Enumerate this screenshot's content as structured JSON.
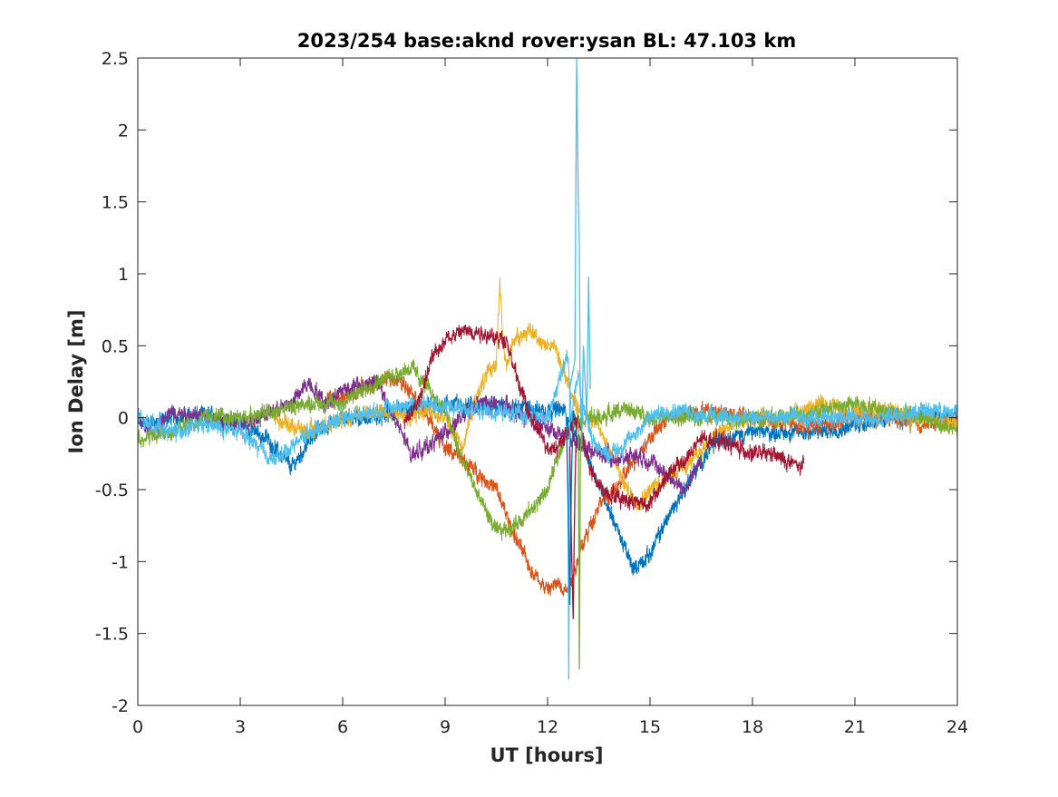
{
  "chart_data": {
    "type": "line",
    "title": "2023/254 base:aknd rover:ysan BL: 47.103 km",
    "xlabel": "UT [hours]",
    "ylabel": "Ion Delay [m]",
    "xlim": [
      0,
      24
    ],
    "ylim": [
      -2,
      2.5
    ],
    "x_ticks": [
      0,
      3,
      6,
      9,
      12,
      15,
      18,
      21,
      24
    ],
    "x_tick_labels": [
      "0",
      "3",
      "6",
      "9",
      "12",
      "15",
      "18",
      "21",
      "24"
    ],
    "y_ticks": [
      -2,
      -1.5,
      -1,
      -0.5,
      0,
      0.5,
      1,
      1.5,
      2,
      2.5
    ],
    "y_tick_labels": [
      "-2",
      "-1.5",
      "-1",
      "-0.5",
      "0",
      "0.5",
      "1",
      "1.5",
      "2",
      "2.5"
    ],
    "grid": false,
    "legend": "none",
    "series": [
      {
        "color": "#0072BD",
        "noise": 0.045,
        "x": [
          0.0,
          1.0,
          2.0,
          3.0,
          3.8,
          4.5,
          5.2,
          6.0,
          7.0,
          8.0,
          9.0,
          12.5,
          13.0,
          13.5,
          14.0,
          14.5,
          15.0,
          15.5,
          16.0,
          16.5,
          17.0,
          18.0,
          19.0,
          20.0,
          21.0,
          22.0,
          23.0,
          24.0
        ],
        "y": [
          -0.05,
          0.0,
          0.02,
          -0.05,
          -0.15,
          -0.35,
          -0.1,
          0.0,
          0.0,
          0.05,
          0.1,
          0.05,
          -0.2,
          -0.45,
          -0.75,
          -1.05,
          -0.95,
          -0.7,
          -0.5,
          -0.3,
          -0.15,
          -0.1,
          -0.1,
          -0.1,
          -0.05,
          0.0,
          0.0,
          0.0
        ]
      },
      {
        "color": "#D95319",
        "noise": 0.045,
        "x": [
          5.5,
          6.5,
          7.5,
          8.0,
          8.5,
          9.0,
          9.8,
          10.5,
          11.0,
          11.5,
          12.0,
          12.3,
          12.6,
          13.0,
          13.5,
          14.0,
          14.8,
          15.5,
          16.5,
          17.0,
          18.0,
          19.0,
          20.0,
          21.0,
          22.0,
          23.0,
          24.0
        ],
        "y": [
          0.1,
          0.2,
          0.28,
          0.2,
          0.0,
          -0.2,
          -0.35,
          -0.5,
          -0.8,
          -1.05,
          -1.2,
          -1.15,
          -1.2,
          -0.9,
          -0.6,
          -0.5,
          -0.2,
          0.0,
          0.05,
          0.05,
          0.0,
          -0.05,
          -0.05,
          0.0,
          0.0,
          -0.05,
          0.0
        ]
      },
      {
        "color": "#EDB120",
        "noise": 0.045,
        "x": [
          4.0,
          5.0,
          6.0,
          7.0,
          8.0,
          8.5,
          9.0,
          9.5,
          10.0,
          10.5,
          10.6,
          10.7,
          10.8,
          11.0,
          11.5,
          12.0,
          12.2,
          12.8,
          13.3,
          13.8,
          14.2,
          14.6,
          15.0,
          15.5,
          16.0,
          17.0,
          18.0,
          19.0,
          20.0,
          21.0,
          22.0,
          23.0,
          24.0
        ],
        "y": [
          0.0,
          -0.1,
          0.0,
          0.05,
          0.0,
          0.05,
          0.0,
          -0.2,
          0.2,
          0.4,
          0.95,
          0.5,
          0.35,
          0.55,
          0.6,
          0.5,
          0.5,
          0.1,
          0.0,
          -0.2,
          -0.45,
          -0.6,
          -0.5,
          -0.4,
          -0.35,
          -0.1,
          0.0,
          0.0,
          0.1,
          0.05,
          0.05,
          0.0,
          -0.05
        ]
      },
      {
        "color": "#7E2F8E",
        "noise": 0.045,
        "x": [
          0.0,
          0.5,
          1.0,
          2.0,
          3.0,
          4.0,
          4.5,
          5.0,
          5.5,
          6.0,
          7.0,
          7.5,
          8.0,
          8.5,
          9.0,
          9.5,
          10.0,
          10.5,
          14.0,
          14.5,
          15.0,
          16.0,
          16.5
        ],
        "y": [
          0.0,
          -0.1,
          0.05,
          0.0,
          -0.05,
          0.05,
          0.1,
          0.25,
          0.1,
          0.2,
          0.25,
          0.0,
          -0.25,
          -0.2,
          -0.1,
          0.0,
          0.1,
          0.1,
          -0.3,
          -0.25,
          -0.3,
          -0.5,
          -0.3
        ]
      },
      {
        "color": "#77AC30",
        "noise": 0.045,
        "x": [
          0.0,
          1.0,
          2.0,
          3.0,
          4.0,
          5.0,
          6.0,
          7.0,
          8.0,
          8.5,
          9.0,
          9.5,
          10.0,
          10.5,
          11.0,
          11.5,
          12.0,
          12.4,
          12.8,
          13.2,
          13.6,
          14.0,
          14.5,
          15.0,
          17.0,
          19.0,
          20.0,
          21.0,
          22.0,
          23.0,
          24.0
        ],
        "y": [
          -0.15,
          -0.1,
          0.0,
          0.0,
          0.05,
          0.1,
          0.1,
          0.25,
          0.35,
          0.2,
          0.05,
          -0.3,
          -0.55,
          -0.8,
          -0.75,
          -0.65,
          -0.5,
          -0.2,
          0.0,
          0.0,
          0.0,
          0.05,
          0.05,
          0.0,
          0.0,
          0.0,
          0.05,
          0.1,
          0.05,
          0.0,
          -0.1
        ]
      },
      {
        "color": "#4DBEEE",
        "noise": 0.045,
        "x": [
          0.0,
          1.0,
          2.0,
          3.0,
          3.5,
          4.0,
          4.5,
          5.0,
          6.0,
          7.0,
          8.0,
          12.0,
          12.4,
          12.6,
          12.7,
          12.8,
          12.9,
          13.0,
          13.4,
          13.8,
          14.2,
          14.6,
          15.0,
          15.5,
          16.0,
          17.0,
          18.0,
          19.0,
          20.0,
          21.0,
          22.0,
          23.0,
          24.0
        ],
        "y": [
          0.0,
          -0.1,
          -0.05,
          -0.1,
          -0.2,
          -0.3,
          -0.2,
          -0.1,
          0.0,
          0.05,
          0.1,
          0.0,
          0.3,
          0.45,
          0.0,
          0.2,
          0.3,
          0.1,
          -0.2,
          -0.25,
          -0.2,
          -0.1,
          0.0,
          0.05,
          0.05,
          0.0,
          0.0,
          0.0,
          0.0,
          0.0,
          0.0,
          0.05,
          0.05
        ]
      },
      {
        "color": "#A2142F",
        "noise": 0.045,
        "x": [
          7.8,
          8.2,
          8.6,
          9.0,
          9.5,
          10.0,
          10.5,
          10.8,
          11.0,
          11.5,
          12.0,
          12.3,
          12.6,
          12.8,
          13.0,
          13.3,
          13.6,
          14.0,
          15.0,
          15.5,
          16.0,
          16.5,
          17.0,
          17.5,
          18.0,
          18.5,
          19.0,
          19.5
        ],
        "y": [
          -0.05,
          0.1,
          0.4,
          0.55,
          0.6,
          0.6,
          0.55,
          0.55,
          0.35,
          0.0,
          -0.2,
          -0.2,
          -0.1,
          0.0,
          -0.1,
          -0.4,
          -0.5,
          -0.55,
          -0.6,
          -0.4,
          -0.3,
          -0.15,
          -0.15,
          -0.2,
          -0.25,
          -0.25,
          -0.3,
          -0.35
        ]
      }
    ],
    "spikes": [
      {
        "color": "#4DBEEE",
        "x": [
          12.55,
          12.6,
          12.62,
          12.65,
          12.8,
          12.85,
          12.9,
          12.93,
          12.95,
          13.0,
          13.05,
          13.15,
          13.2,
          13.25
        ],
        "y": [
          0.0,
          -0.5,
          -1.82,
          0.2,
          0.4,
          2.5,
          1.5,
          1.2,
          0.3,
          -0.2,
          0.5,
          0.0,
          0.98,
          0.2
        ]
      },
      {
        "color": "#77AC30",
        "x": [
          12.9,
          12.93,
          12.96,
          13.0
        ],
        "y": [
          0.0,
          -1.75,
          -0.3,
          0.0
        ]
      },
      {
        "color": "#0072BD",
        "x": [
          12.55,
          12.6,
          12.65,
          12.7,
          12.75,
          12.8
        ],
        "y": [
          0.0,
          -0.6,
          -1.3,
          -0.4,
          0.05,
          0.0
        ]
      },
      {
        "color": "#A2142F",
        "x": [
          12.65,
          12.7,
          12.75,
          12.8,
          12.85
        ],
        "y": [
          -0.2,
          -0.9,
          -1.4,
          -0.5,
          0.0
        ]
      }
    ]
  }
}
